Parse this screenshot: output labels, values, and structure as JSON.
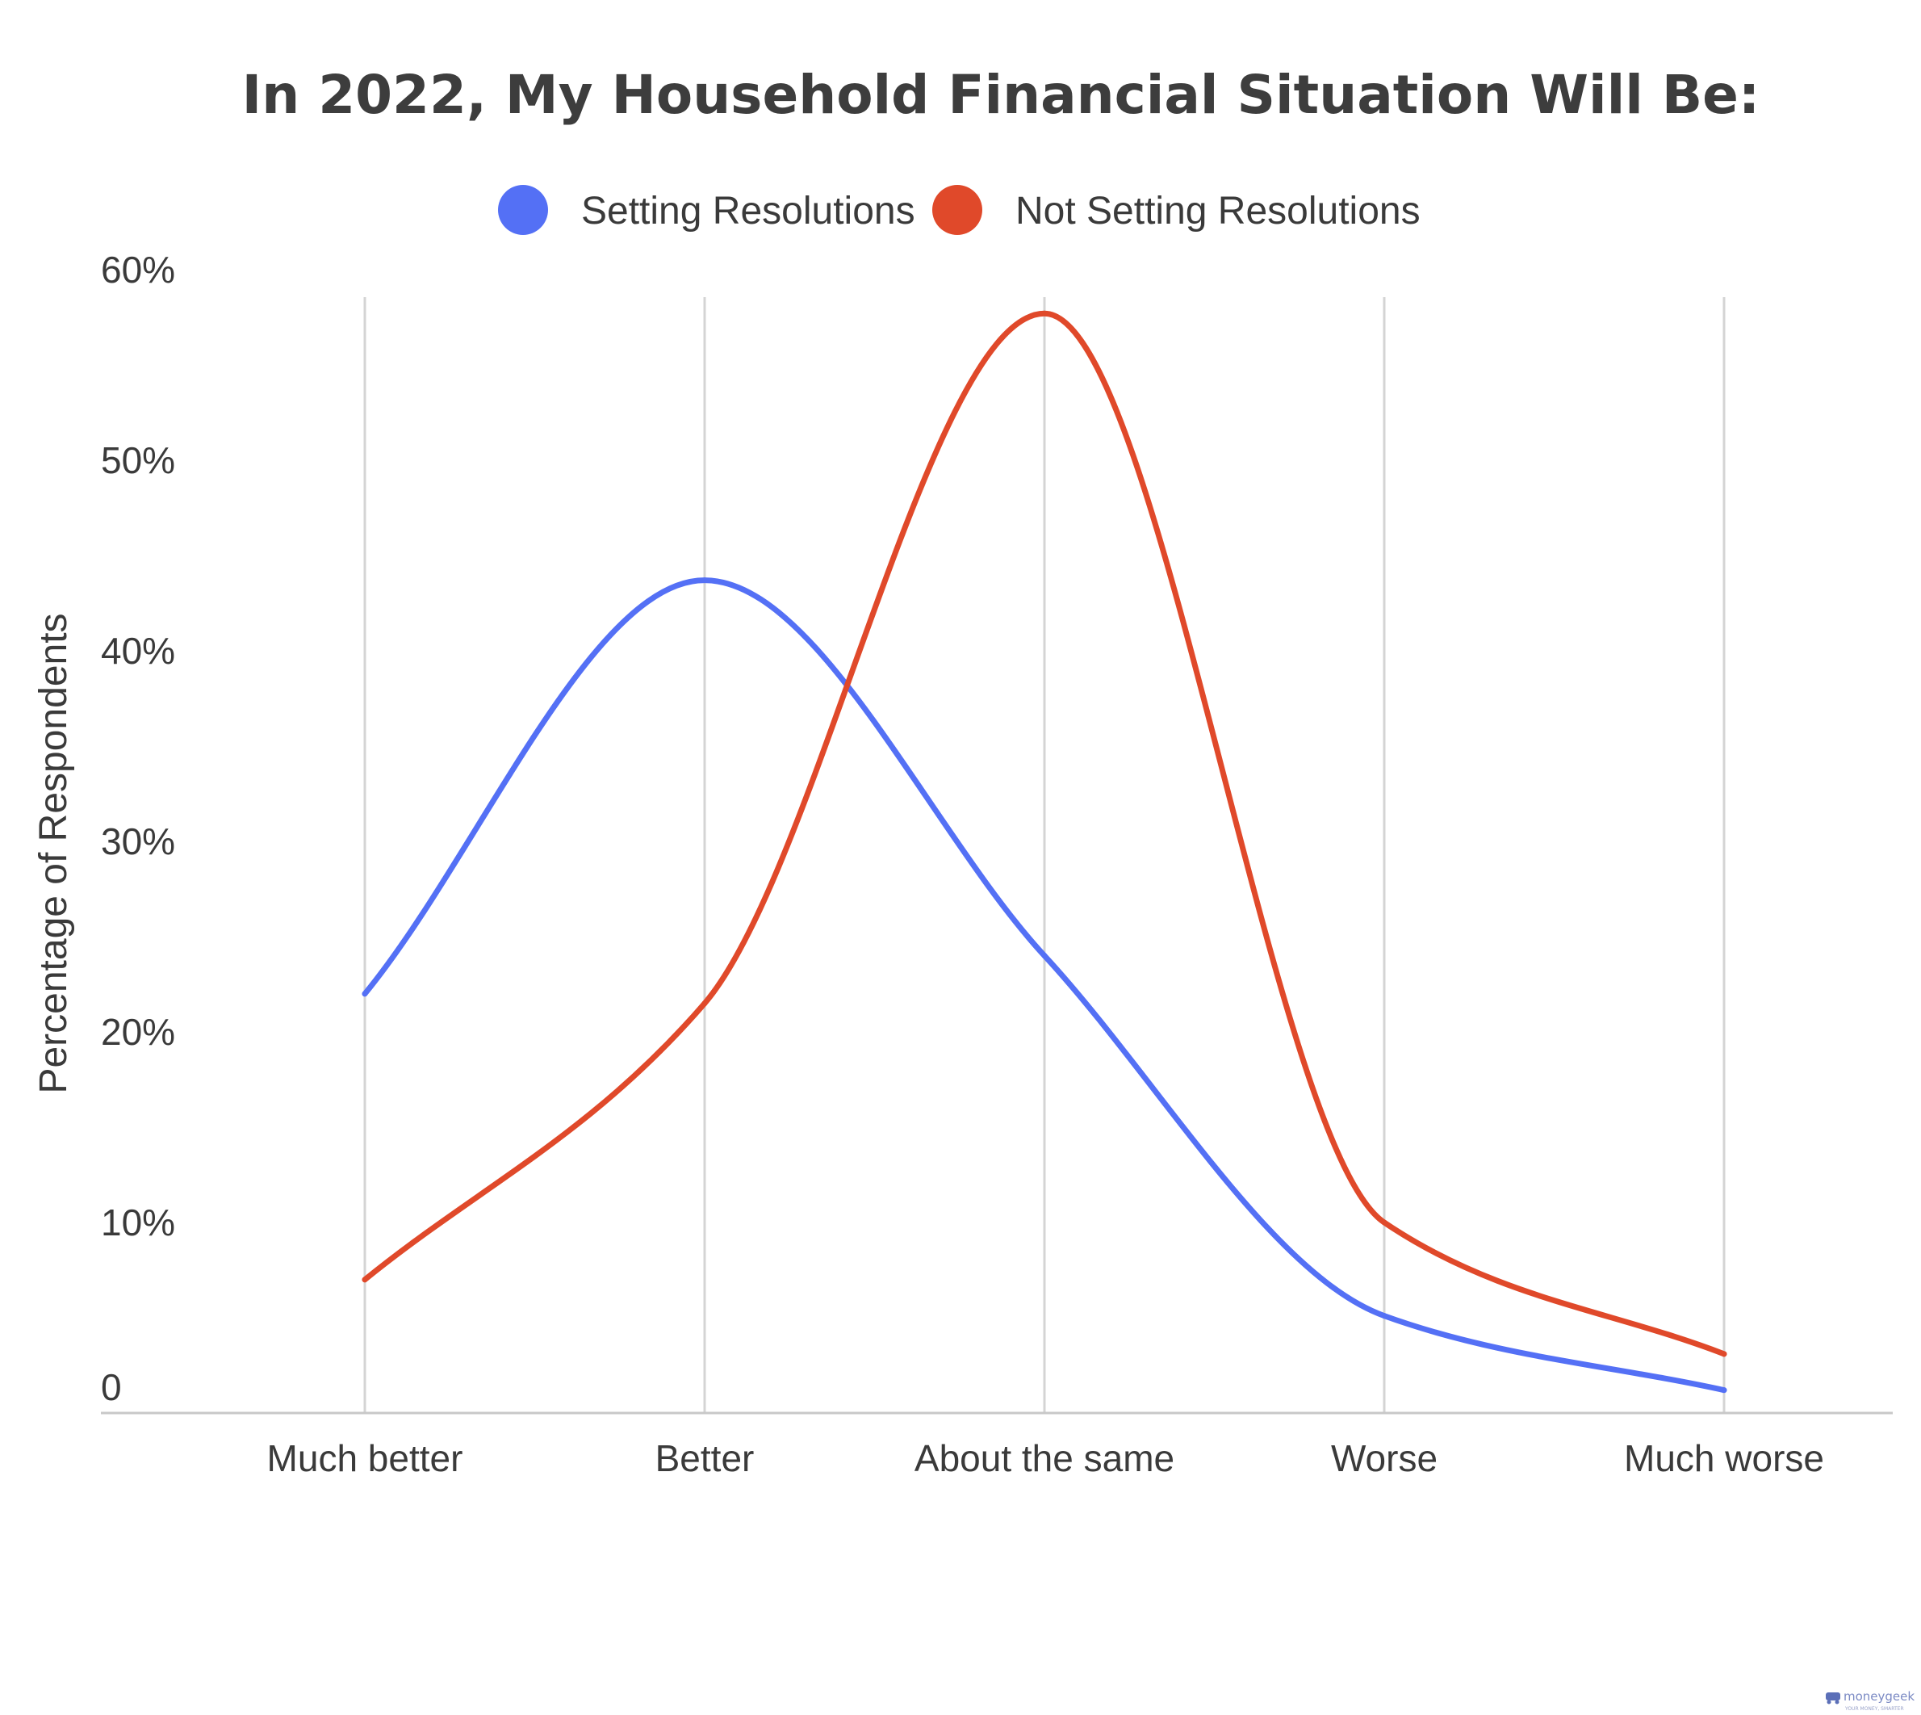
{
  "chart_data": {
    "type": "line",
    "title": "In 2022, My Household Financial Situation Will Be:",
    "xlabel": "",
    "ylabel": "Percentage of Respondents",
    "categories": [
      "Much better",
      "Better",
      "About the same",
      "Worse",
      "Much worse"
    ],
    "ylim": [
      0,
      60
    ],
    "yticks": [
      0,
      10,
      20,
      30,
      40,
      50,
      60
    ],
    "ytick_labels": [
      "0",
      "10%",
      "20%",
      "30%",
      "40%",
      "50%",
      "60%"
    ],
    "grid": "vertical",
    "legend": "top",
    "smooth": true,
    "series": [
      {
        "name": "Setting Resolutions",
        "color": "#5470f5",
        "values": [
          22,
          43.7,
          24,
          5.1,
          1.2
        ]
      },
      {
        "name": "Not Setting Resolutions",
        "color": "#e0492a",
        "values": [
          7,
          21.5,
          57.7,
          10,
          3.1
        ]
      }
    ]
  },
  "watermark": {
    "brand": "moneygeek",
    "tagline": "YOUR MONEY, SMARTER"
  }
}
